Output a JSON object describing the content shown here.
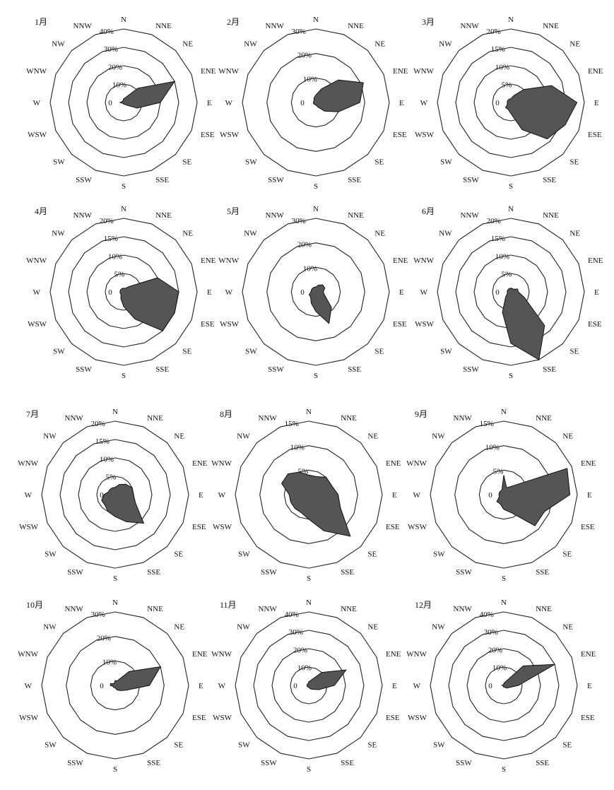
{
  "figure": {
    "directions": [
      "N",
      "NNE",
      "NE",
      "ENE",
      "E",
      "ESE",
      "SE",
      "SSE",
      "S",
      "SSW",
      "SW",
      "WSW",
      "W",
      "WNW",
      "NW",
      "NNW"
    ],
    "center_label": "0",
    "polygon_color": "#555555"
  },
  "chart_data": [
    {
      "type": "radar",
      "title": "1月",
      "rings": [
        10,
        20,
        30,
        40
      ],
      "ring_labels": [
        "10%",
        "20%",
        "30%",
        "40%"
      ],
      "values": [
        2,
        3,
        11,
        30,
        20,
        8,
        2,
        1,
        1,
        0.5,
        0.5,
        1,
        2,
        1,
        1,
        1
      ]
    },
    {
      "type": "radar",
      "title": "2月",
      "rings": [
        10,
        20,
        30
      ],
      "ring_labels": [
        "10%",
        "20%",
        "30%"
      ],
      "values": [
        3,
        6,
        13,
        21,
        18,
        10,
        5,
        2,
        1,
        1,
        1,
        1,
        1,
        1,
        1,
        2
      ]
    },
    {
      "type": "radar",
      "title": "3月",
      "rings": [
        5,
        10,
        15,
        20
      ],
      "ring_labels": [
        "5%",
        "10%",
        "15%",
        "20%"
      ],
      "values": [
        1,
        2,
        5,
        12,
        18,
        16,
        14,
        8,
        3,
        2,
        2,
        1,
        1,
        1,
        1,
        1
      ]
    },
    {
      "type": "radar",
      "title": "4月",
      "rings": [
        5,
        10,
        15,
        20
      ],
      "ring_labels": [
        "5%",
        "10%",
        "15%",
        "20%"
      ],
      "values": [
        1,
        1,
        2,
        10,
        15,
        15,
        15,
        8,
        4,
        2,
        1,
        1,
        1,
        1,
        1,
        1
      ]
    },
    {
      "type": "radar",
      "title": "5月",
      "rings": [
        10,
        20,
        30
      ],
      "ring_labels": [
        "10%",
        "20%",
        "30%"
      ],
      "values": [
        2,
        3,
        4,
        4,
        3,
        4,
        9,
        14,
        8,
        5,
        3,
        3,
        2,
        2,
        2,
        2
      ]
    },
    {
      "type": "radar",
      "title": "6月",
      "rings": [
        5,
        10,
        15,
        20
      ],
      "ring_labels": [
        "5%",
        "10%",
        "15%",
        "20%"
      ],
      "values": [
        1,
        1,
        1,
        2,
        2,
        4,
        13,
        20,
        14,
        6,
        2,
        1,
        1,
        1,
        1,
        1
      ]
    },
    {
      "type": "radar",
      "title": "7月",
      "rings": [
        5,
        10,
        15,
        20
      ],
      "ring_labels": [
        "5%",
        "10%",
        "15%",
        "20%"
      ],
      "values": [
        2,
        3,
        4,
        5,
        5,
        6,
        11,
        8,
        6,
        5,
        4,
        4,
        3,
        2,
        2,
        2
      ]
    },
    {
      "type": "radar",
      "title": "8月",
      "rings": [
        5,
        10,
        15
      ],
      "ring_labels": [
        "5%",
        "10%",
        "15%"
      ],
      "values": [
        4,
        4,
        5,
        5,
        6,
        7,
        12,
        8,
        5,
        4,
        4,
        4,
        4,
        6,
        6,
        5
      ]
    },
    {
      "type": "radar",
      "title": "9月",
      "rings": [
        5,
        10,
        15
      ],
      "ring_labels": [
        "5%",
        "10%",
        "15%"
      ],
      "values": [
        4,
        1.5,
        2.5,
        14,
        13.5,
        9,
        9,
        4,
        3,
        2,
        2,
        1,
        1,
        1,
        1,
        1
      ]
    },
    {
      "type": "radar",
      "title": "10月",
      "rings": [
        10,
        20,
        30
      ],
      "ring_labels": [
        "10%",
        "20%",
        "30%"
      ],
      "values": [
        2,
        2,
        8,
        20,
        14,
        5,
        3,
        2,
        1,
        1,
        1,
        1,
        2,
        2,
        1,
        1
      ]
    },
    {
      "type": "radar",
      "title": "11月",
      "rings": [
        10,
        20,
        30,
        40
      ],
      "ring_labels": [
        "10%",
        "20%",
        "30%",
        "40%"
      ],
      "values": [
        2,
        3,
        10,
        22,
        14,
        6,
        3,
        2,
        1,
        1,
        1,
        1,
        1,
        1,
        1,
        1
      ]
    },
    {
      "type": "radar",
      "title": "12月",
      "rings": [
        10,
        20,
        30,
        40
      ],
      "ring_labels": [
        "10%",
        "20%",
        "30%",
        "40%"
      ],
      "values": [
        1,
        2,
        15,
        30,
        8,
        3,
        2,
        1,
        1,
        0.5,
        0.5,
        0.5,
        1,
        0.5,
        0.5,
        0.5
      ]
    }
  ]
}
